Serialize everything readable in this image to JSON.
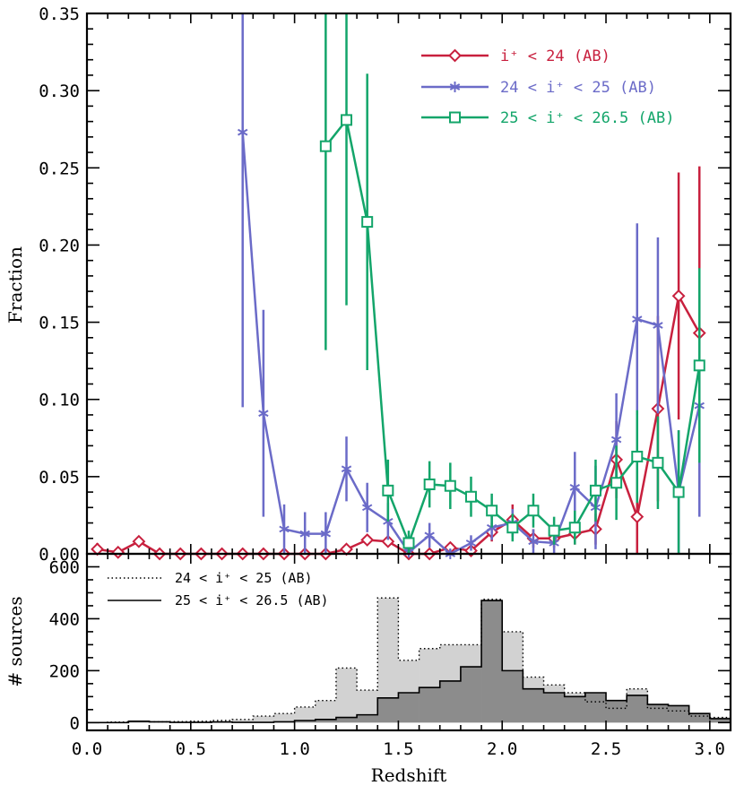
{
  "chart_data": [
    {
      "type": "line",
      "panel": "top",
      "ylabel": "Fraction",
      "xlim": [
        0.0,
        3.1
      ],
      "ylim": [
        0.0,
        0.35
      ],
      "yticks": [
        "0.00",
        "0.05",
        "0.10",
        "0.15",
        "0.20",
        "0.25",
        "0.30",
        "0.35"
      ],
      "legend_position": "top-right",
      "series": [
        {
          "name": "i⁺ < 24 (AB)",
          "color": "#c8203e",
          "marker": "diamond",
          "x": [
            0.05,
            0.15,
            0.25,
            0.35,
            0.45,
            0.55,
            0.65,
            0.75,
            0.85,
            0.95,
            1.05,
            1.15,
            1.25,
            1.35,
            1.45,
            1.55,
            1.65,
            1.75,
            1.85,
            1.95,
            2.05,
            2.15,
            2.25,
            2.35,
            2.45,
            2.55,
            2.65,
            2.75,
            2.85,
            2.95
          ],
          "y": [
            0.003,
            0.001,
            0.008,
            0.0,
            0.0,
            0.0,
            0.0,
            0.0,
            0.0,
            0.0,
            0.0,
            0.0,
            0.003,
            0.009,
            0.008,
            0.0,
            0.0,
            0.004,
            0.002,
            0.014,
            0.022,
            0.01,
            0.01,
            0.013,
            0.016,
            0.061,
            0.024,
            0.094,
            0.167,
            0.143
          ],
          "err": [
            0.004,
            0.002,
            0.003,
            0.0,
            0.0,
            0.0,
            0.0,
            0.0,
            0.0,
            0.0,
            0.0,
            0.0,
            0.002,
            0.003,
            0.003,
            0.0,
            0.0,
            0.003,
            0.003,
            0.006,
            0.01,
            0.006,
            0.006,
            0.007,
            0.01,
            0.025,
            0.03,
            0.06,
            0.08,
            0.108
          ]
        },
        {
          "name": "24 < i⁺ < 25 (AB)",
          "color": "#6b6bc8",
          "marker": "asterisk",
          "x": [
            0.75,
            0.85,
            0.95,
            1.05,
            1.15,
            1.25,
            1.35,
            1.45,
            1.55,
            1.65,
            1.75,
            1.85,
            1.95,
            2.05,
            2.15,
            2.25,
            2.35,
            2.45,
            2.55,
            2.65,
            2.75,
            2.85,
            2.95
          ],
          "y": [
            0.273,
            0.091,
            0.016,
            0.013,
            0.013,
            0.055,
            0.03,
            0.021,
            0.001,
            0.012,
            0.0,
            0.007,
            0.017,
            0.02,
            0.008,
            0.007,
            0.043,
            0.03,
            0.074,
            0.152,
            0.148,
            0.04,
            0.096
          ],
          "err": [
            0.178,
            0.067,
            0.016,
            0.014,
            0.014,
            0.021,
            0.016,
            0.012,
            0.003,
            0.008,
            0.003,
            0.005,
            0.008,
            0.009,
            0.008,
            0.009,
            0.023,
            0.027,
            0.03,
            0.062,
            0.057,
            0.04,
            0.072
          ]
        },
        {
          "name": "25 < i⁺ < 26.5 (AB)",
          "color": "#13a56a",
          "marker": "square",
          "x": [
            1.15,
            1.25,
            1.35,
            1.45,
            1.55,
            1.65,
            1.75,
            1.85,
            1.95,
            2.05,
            2.15,
            2.25,
            2.35,
            2.45,
            2.55,
            2.65,
            2.75,
            2.85,
            2.95
          ],
          "y": [
            0.264,
            0.281,
            0.215,
            0.041,
            0.007,
            0.045,
            0.044,
            0.037,
            0.028,
            0.017,
            0.028,
            0.015,
            0.017,
            0.041,
            0.046,
            0.063,
            0.059,
            0.04,
            0.122
          ],
          "err": [
            0.132,
            0.12,
            0.096,
            0.02,
            0.008,
            0.015,
            0.015,
            0.013,
            0.011,
            0.009,
            0.011,
            0.009,
            0.011,
            0.02,
            0.024,
            0.03,
            0.03,
            0.04,
            0.063
          ]
        }
      ]
    },
    {
      "type": "area",
      "panel": "bottom",
      "xlabel": "Redshift",
      "ylabel": "# sources",
      "xlim": [
        0.0,
        3.1
      ],
      "ylim": [
        -30,
        650
      ],
      "xticks": [
        "0.0",
        "0.5",
        "1.0",
        "1.5",
        "2.0",
        "2.5",
        "3.0"
      ],
      "yticks": [
        "0",
        "200",
        "400",
        "600"
      ],
      "legend_position": "top-left",
      "bin_edges": [
        0.0,
        0.1,
        0.2,
        0.3,
        0.4,
        0.5,
        0.6,
        0.7,
        0.8,
        0.9,
        1.0,
        1.1,
        1.2,
        1.3,
        1.4,
        1.5,
        1.6,
        1.7,
        1.8,
        1.9,
        2.0,
        2.1,
        2.2,
        2.3,
        2.4,
        2.5,
        2.6,
        2.7,
        2.8,
        2.9,
        3.0,
        3.1
      ],
      "series": [
        {
          "name": "24 < i⁺ < 25 (AB)",
          "line": "dotted",
          "fill": "#d2d2d2",
          "values": [
            0,
            2,
            5,
            3,
            4,
            5,
            8,
            12,
            25,
            35,
            60,
            85,
            210,
            125,
            480,
            240,
            285,
            300,
            300,
            475,
            350,
            175,
            145,
            115,
            80,
            55,
            130,
            55,
            45,
            25,
            20
          ]
        },
        {
          "name": "25 < i⁺ < 26.5 (AB)",
          "line": "solid",
          "fill": "#8c8c8c",
          "values": [
            0,
            0,
            5,
            3,
            1,
            1,
            2,
            1,
            1,
            3,
            8,
            12,
            20,
            30,
            95,
            115,
            135,
            160,
            215,
            470,
            200,
            130,
            115,
            100,
            115,
            85,
            105,
            70,
            65,
            35,
            15
          ]
        }
      ]
    }
  ]
}
